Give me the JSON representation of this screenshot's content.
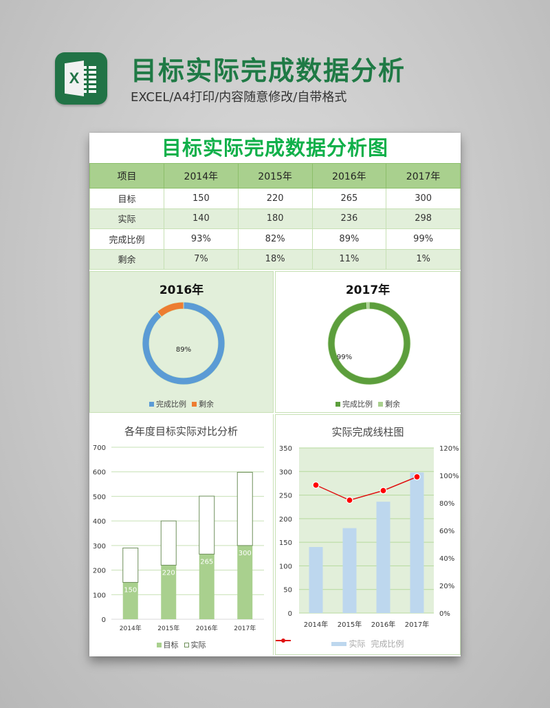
{
  "header": {
    "title": "目标实际完成数据分析",
    "subtitle": "EXCEL/A4打印/内容随意修改/自带格式",
    "logo_icon": "excel-icon",
    "logo_letter": "X"
  },
  "sheet": {
    "title": "目标实际完成数据分析图",
    "table": {
      "headers": [
        "项目",
        "2014年",
        "2015年",
        "2016年",
        "2017年"
      ],
      "rows": [
        [
          "目标",
          "150",
          "220",
          "265",
          "300"
        ],
        [
          "实际",
          "140",
          "180",
          "236",
          "298"
        ],
        [
          "完成比例",
          "93%",
          "82%",
          "89%",
          "99%"
        ],
        [
          "剩余",
          "7%",
          "18%",
          "11%",
          "1%"
        ]
      ]
    }
  },
  "colors": {
    "title_green": "#10b04a",
    "header_green": "#a9d08e",
    "row_alt": "#e2efda",
    "donut2016_done": "#5b9bd5",
    "donut2016_rest": "#ed7d31",
    "donut2017_done": "#5c9e3c",
    "donut2017_rest": "#a9d08e",
    "bar_target": "#a9d08e",
    "bar_actual_outline": "#6e8f5a",
    "bar_actual_blue": "#bdd7ee",
    "line_red": "#e01010"
  },
  "donut_2016": {
    "title": "2016年",
    "center_label": "89%",
    "legend": [
      "完成比例",
      "剩余"
    ]
  },
  "donut_2017": {
    "title": "2017年",
    "center_label": "99%",
    "legend": [
      "完成比例",
      "剩余"
    ]
  },
  "stacked_chart": {
    "title": "各年度目标实际对比分析",
    "y_ticks": [
      "0",
      "100",
      "200",
      "300",
      "400",
      "500",
      "600",
      "700"
    ],
    "categories": [
      "2014年",
      "2015年",
      "2016年",
      "2017年"
    ],
    "bar_labels": [
      "150",
      "220",
      "265",
      "300"
    ],
    "legend": [
      "目标",
      "实际"
    ]
  },
  "combo_chart": {
    "title": "实际完成线柱图",
    "y_ticks_left": [
      "0",
      "50",
      "100",
      "150",
      "200",
      "250",
      "300",
      "350"
    ],
    "y_ticks_right": [
      "0%",
      "20%",
      "40%",
      "60%",
      "80%",
      "100%",
      "120%"
    ],
    "categories": [
      "2014年",
      "2015年",
      "2016年",
      "2017年"
    ],
    "legend": [
      "实际",
      "完成比例"
    ]
  },
  "chart_data": [
    {
      "type": "pie",
      "title": "2016年",
      "categories": [
        "完成比例",
        "剩余"
      ],
      "values": [
        89,
        11
      ],
      "annotations": [
        "89%"
      ],
      "legend_position": "bottom"
    },
    {
      "type": "pie",
      "title": "2017年",
      "categories": [
        "完成比例",
        "剩余"
      ],
      "values": [
        99,
        1
      ],
      "annotations": [
        "99%"
      ],
      "legend_position": "bottom"
    },
    {
      "type": "bar",
      "stacked": true,
      "title": "各年度目标实际对比分析",
      "categories": [
        "2014年",
        "2015年",
        "2016年",
        "2017年"
      ],
      "series": [
        {
          "name": "目标",
          "values": [
            150,
            220,
            265,
            300
          ]
        },
        {
          "name": "实际",
          "values": [
            140,
            180,
            236,
            298
          ]
        }
      ],
      "xlabel": "",
      "ylabel": "",
      "ylim": [
        0,
        700
      ],
      "grid": true,
      "legend_position": "bottom"
    },
    {
      "type": "bar",
      "combo": "bar+line",
      "title": "实际完成线柱图",
      "categories": [
        "2014年",
        "2015年",
        "2016年",
        "2017年"
      ],
      "series": [
        {
          "name": "实际",
          "type": "bar",
          "axis": "left",
          "values": [
            140,
            180,
            236,
            298
          ]
        },
        {
          "name": "完成比例",
          "type": "line",
          "axis": "right",
          "values": [
            0.93,
            0.82,
            0.89,
            0.99
          ]
        }
      ],
      "ylim": [
        0,
        350
      ],
      "y2lim": [
        0,
        1.2
      ],
      "grid": true,
      "legend_position": "bottom"
    }
  ]
}
